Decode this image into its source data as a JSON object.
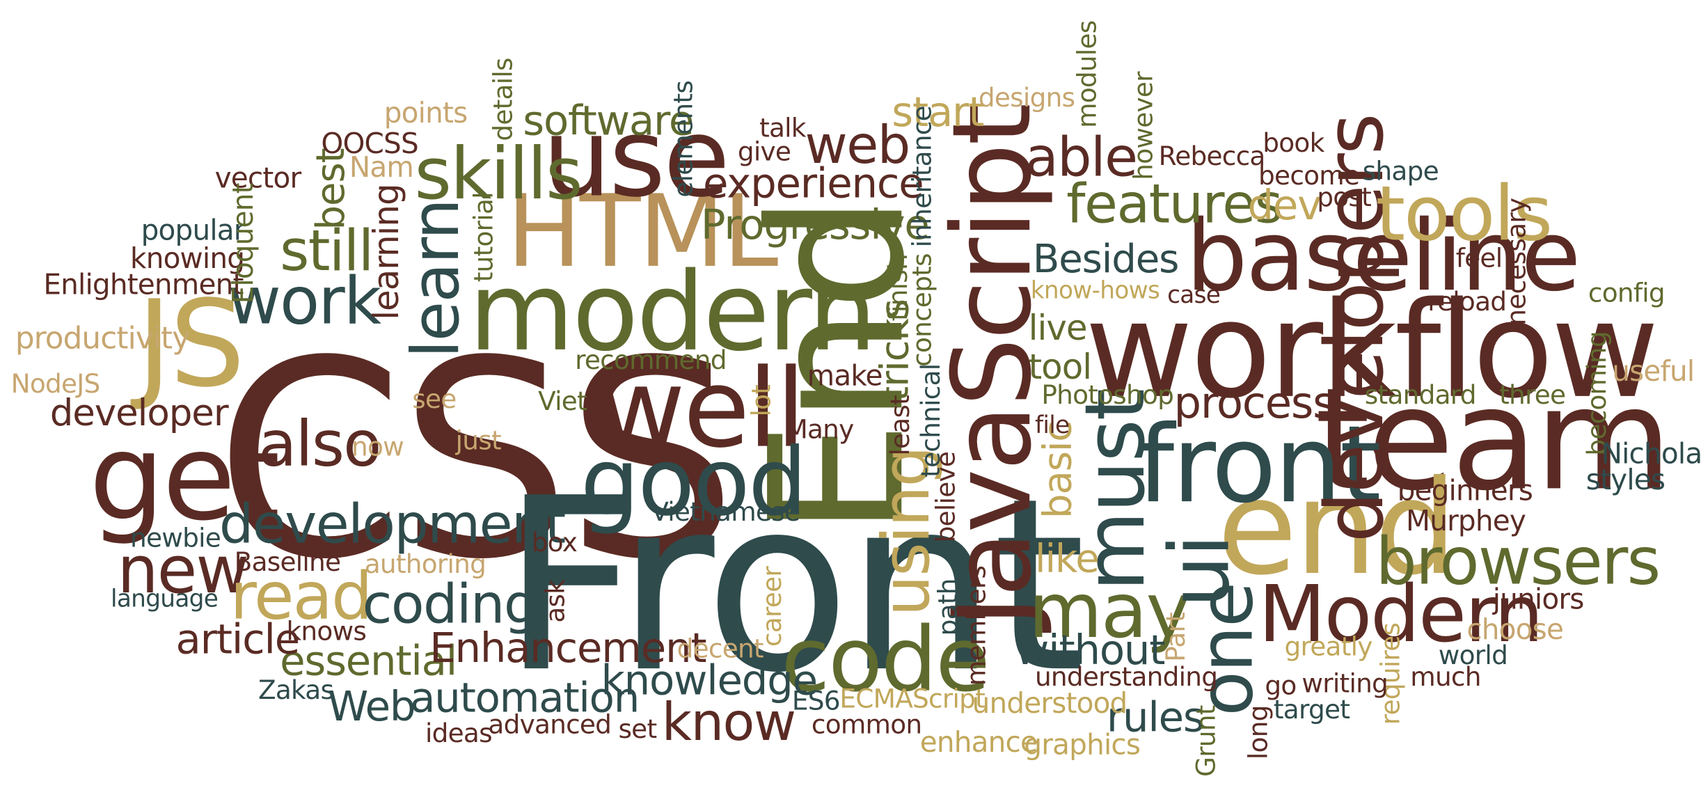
{
  "palette": {
    "dark_brown": "#5a2b24",
    "slate": "#2f4b4c",
    "olive": "#5f6a2e",
    "tan": "#b8925a",
    "khaki": "#c1a75a",
    "light_tan": "#c7a670"
  },
  "words": [
    {
      "text": "CSS",
      "color": "dark_brown"
    },
    {
      "text": "Front",
      "color": "slate"
    },
    {
      "text": "End",
      "color": "olive"
    },
    {
      "text": "JavaScript",
      "color": "dark_brown"
    },
    {
      "text": "workflow",
      "color": "dark_brown"
    },
    {
      "text": "team",
      "color": "dark_brown"
    },
    {
      "text": "modern",
      "color": "olive"
    },
    {
      "text": "HTML",
      "color": "tan"
    },
    {
      "text": "end",
      "color": "khaki"
    },
    {
      "text": "front",
      "color": "slate"
    },
    {
      "text": "baseline",
      "color": "dark_brown"
    },
    {
      "text": "use",
      "color": "dark_brown"
    },
    {
      "text": "JS",
      "color": "khaki"
    },
    {
      "text": "get",
      "color": "dark_brown"
    },
    {
      "text": "well",
      "color": "dark_brown"
    },
    {
      "text": "good",
      "color": "slate"
    },
    {
      "text": "code",
      "color": "olive"
    },
    {
      "text": "developers",
      "color": "dark_brown"
    },
    {
      "text": "tools",
      "color": "khaki"
    },
    {
      "text": "browsers",
      "color": "olive"
    },
    {
      "text": "Modern",
      "color": "dark_brown"
    },
    {
      "text": "must",
      "color": "slate"
    },
    {
      "text": "one",
      "color": "slate"
    },
    {
      "text": "may",
      "color": "olive"
    },
    {
      "text": "skills",
      "color": "olive"
    },
    {
      "text": "learn",
      "color": "slate"
    },
    {
      "text": "work",
      "color": "slate"
    },
    {
      "text": "ui",
      "color": "slate"
    },
    {
      "text": "development",
      "color": "slate"
    },
    {
      "text": "also",
      "color": "dark_brown"
    },
    {
      "text": "new",
      "color": "dark_brown"
    },
    {
      "text": "read",
      "color": "khaki"
    },
    {
      "text": "coding",
      "color": "slate"
    },
    {
      "text": "using",
      "color": "khaki"
    },
    {
      "text": "features",
      "color": "olive"
    },
    {
      "text": "able",
      "color": "dark_brown"
    },
    {
      "text": "web",
      "color": "dark_brown"
    },
    {
      "text": "software",
      "color": "olive"
    },
    {
      "text": "experience",
      "color": "dark_brown"
    },
    {
      "text": "Progressive",
      "color": "olive"
    },
    {
      "text": "still",
      "color": "olive"
    },
    {
      "text": "start",
      "color": "khaki"
    },
    {
      "text": "know",
      "color": "dark_brown"
    },
    {
      "text": "knowledge",
      "color": "slate"
    },
    {
      "text": "essential",
      "color": "olive"
    },
    {
      "text": "automation",
      "color": "slate"
    },
    {
      "text": "Enhancement",
      "color": "dark_brown"
    },
    {
      "text": "article",
      "color": "dark_brown"
    },
    {
      "text": "developer",
      "color": "dark_brown"
    },
    {
      "text": "process",
      "color": "dark_brown"
    },
    {
      "text": "Besides",
      "color": "slate"
    },
    {
      "text": "tool",
      "color": "olive"
    },
    {
      "text": "live",
      "color": "olive"
    },
    {
      "text": "without",
      "color": "slate"
    },
    {
      "text": "rules",
      "color": "slate"
    },
    {
      "text": "Web",
      "color": "slate"
    },
    {
      "text": "learning",
      "color": "dark_brown"
    },
    {
      "text": "best",
      "color": "olive"
    },
    {
      "text": "tricks",
      "color": "olive"
    },
    {
      "text": "basic",
      "color": "khaki"
    },
    {
      "text": "dev",
      "color": "khaki"
    },
    {
      "text": "like",
      "color": "khaki"
    },
    {
      "text": "make",
      "color": "dark_brown"
    },
    {
      "text": "productivity",
      "color": "light_tan"
    },
    {
      "text": "Enlightenment",
      "color": "dark_brown"
    },
    {
      "text": "knowing",
      "color": "dark_brown"
    },
    {
      "text": "popular",
      "color": "slate"
    },
    {
      "text": "vector",
      "color": "dark_brown"
    },
    {
      "text": "Eloquent",
      "color": "olive"
    },
    {
      "text": "OOCSS",
      "color": "dark_brown"
    },
    {
      "text": "Nam",
      "color": "light_tan"
    },
    {
      "text": "points",
      "color": "light_tan"
    },
    {
      "text": "details",
      "color": "olive"
    },
    {
      "text": "tutorial",
      "color": "olive"
    },
    {
      "text": "elements",
      "color": "slate"
    },
    {
      "text": "talk",
      "color": "dark_brown"
    },
    {
      "text": "give",
      "color": "dark_brown"
    },
    {
      "text": "technical",
      "color": "slate"
    },
    {
      "text": "inheritance",
      "color": "slate"
    },
    {
      "text": "concepts",
      "color": "olive"
    },
    {
      "text": "finish",
      "color": "olive"
    },
    {
      "text": "least",
      "color": "dark_brown"
    },
    {
      "text": "designs",
      "color": "light_tan"
    },
    {
      "text": "modules",
      "color": "olive"
    },
    {
      "text": "however",
      "color": "olive"
    },
    {
      "text": "Rebecca",
      "color": "dark_brown"
    },
    {
      "text": "book",
      "color": "dark_brown"
    },
    {
      "text": "become",
      "color": "dark_brown"
    },
    {
      "text": "post",
      "color": "dark_brown"
    },
    {
      "text": "shape",
      "color": "slate"
    },
    {
      "text": "know-hows",
      "color": "khaki"
    },
    {
      "text": "case",
      "color": "dark_brown"
    },
    {
      "text": "feel",
      "color": "dark_brown"
    },
    {
      "text": "reload",
      "color": "dark_brown"
    },
    {
      "text": "necessary",
      "color": "dark_brown"
    },
    {
      "text": "config",
      "color": "olive"
    },
    {
      "text": "useful",
      "color": "light_tan"
    },
    {
      "text": "becoming",
      "color": "olive"
    },
    {
      "text": "standard",
      "color": "olive"
    },
    {
      "text": "three",
      "color": "olive"
    },
    {
      "text": "Nicholas",
      "color": "slate"
    },
    {
      "text": "styles",
      "color": "slate"
    },
    {
      "text": "beginners",
      "color": "dark_brown"
    },
    {
      "text": "Murphey",
      "color": "dark_brown"
    },
    {
      "text": "juniors",
      "color": "dark_brown"
    },
    {
      "text": "choose",
      "color": "light_tan"
    },
    {
      "text": "greatly",
      "color": "khaki"
    },
    {
      "text": "world",
      "color": "slate"
    },
    {
      "text": "much",
      "color": "dark_brown"
    },
    {
      "text": "requires",
      "color": "khaki"
    },
    {
      "text": "writing",
      "color": "dark_brown"
    },
    {
      "text": "go",
      "color": "dark_brown"
    },
    {
      "text": "target",
      "color": "slate"
    },
    {
      "text": "long",
      "color": "dark_brown"
    },
    {
      "text": "Grunt",
      "color": "olive"
    },
    {
      "text": "Part",
      "color": "light_tan"
    },
    {
      "text": "understanding",
      "color": "dark_brown"
    },
    {
      "text": "understood",
      "color": "khaki"
    },
    {
      "text": "graphics",
      "color": "khaki"
    },
    {
      "text": "enhance",
      "color": "khaki"
    },
    {
      "text": "common",
      "color": "dark_brown"
    },
    {
      "text": "ECMAScript",
      "color": "khaki"
    },
    {
      "text": "ES6",
      "color": "slate"
    },
    {
      "text": "set",
      "color": "dark_brown"
    },
    {
      "text": "advanced",
      "color": "dark_brown"
    },
    {
      "text": "ideas",
      "color": "dark_brown"
    },
    {
      "text": "Zakas",
      "color": "slate"
    },
    {
      "text": "knows",
      "color": "dark_brown"
    },
    {
      "text": "language",
      "color": "slate"
    },
    {
      "text": "Baseline",
      "color": "dark_brown"
    },
    {
      "text": "newbie",
      "color": "slate"
    },
    {
      "text": "authoring",
      "color": "light_tan"
    },
    {
      "text": "box",
      "color": "dark_brown"
    },
    {
      "text": "ask",
      "color": "dark_brown"
    },
    {
      "text": "decent",
      "color": "light_tan"
    },
    {
      "text": "career",
      "color": "khaki"
    },
    {
      "text": "path",
      "color": "slate"
    },
    {
      "text": "members",
      "color": "dark_brown"
    },
    {
      "text": "believe",
      "color": "dark_brown"
    },
    {
      "text": "Vietnamese",
      "color": "slate"
    },
    {
      "text": "Many",
      "color": "dark_brown"
    },
    {
      "text": "lot",
      "color": "khaki"
    },
    {
      "text": "Viet",
      "color": "olive"
    },
    {
      "text": "just",
      "color": "light_tan"
    },
    {
      "text": "now",
      "color": "light_tan"
    },
    {
      "text": "see",
      "color": "light_tan"
    },
    {
      "text": "recommend",
      "color": "olive"
    },
    {
      "text": "NodeJS",
      "color": "light_tan"
    },
    {
      "text": "Photoshop",
      "color": "olive"
    },
    {
      "text": "file",
      "color": "dark_brown"
    }
  ]
}
